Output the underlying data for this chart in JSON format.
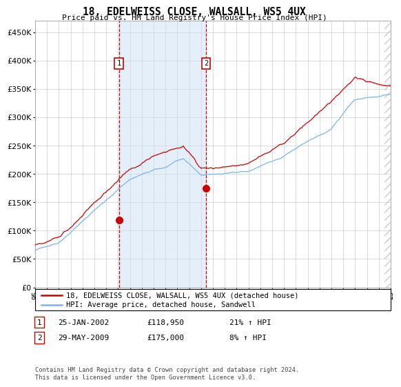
{
  "title": "18, EDELWEISS CLOSE, WALSALL, WS5 4UX",
  "subtitle": "Price paid vs. HM Land Registry's House Price Index (HPI)",
  "legend_line1": "18, EDELWEISS CLOSE, WALSALL, WS5 4UX (detached house)",
  "legend_line2": "HPI: Average price, detached house, Sandwell",
  "annotation1_label": "1",
  "annotation1_date": "25-JAN-2002",
  "annotation1_price": "£118,950",
  "annotation1_hpi": "21% ↑ HPI",
  "annotation2_label": "2",
  "annotation2_date": "29-MAY-2009",
  "annotation2_price": "£175,000",
  "annotation2_hpi": "8% ↑ HPI",
  "footnote": "Contains HM Land Registry data © Crown copyright and database right 2024.\nThis data is licensed under the Open Government Licence v3.0.",
  "hpi_color": "#7ab4e8",
  "price_color": "#cc0000",
  "annotation_color": "#cc0000",
  "shade_color": "#cce0f5",
  "ylim": [
    0,
    470000
  ],
  "yticks": [
    0,
    50000,
    100000,
    150000,
    200000,
    250000,
    300000,
    350000,
    400000,
    450000
  ],
  "year_start": 1995,
  "year_end": 2025,
  "purchase1_year": 2002.07,
  "purchase1_price": 118950,
  "purchase2_year": 2009.42,
  "purchase2_price": 175000
}
